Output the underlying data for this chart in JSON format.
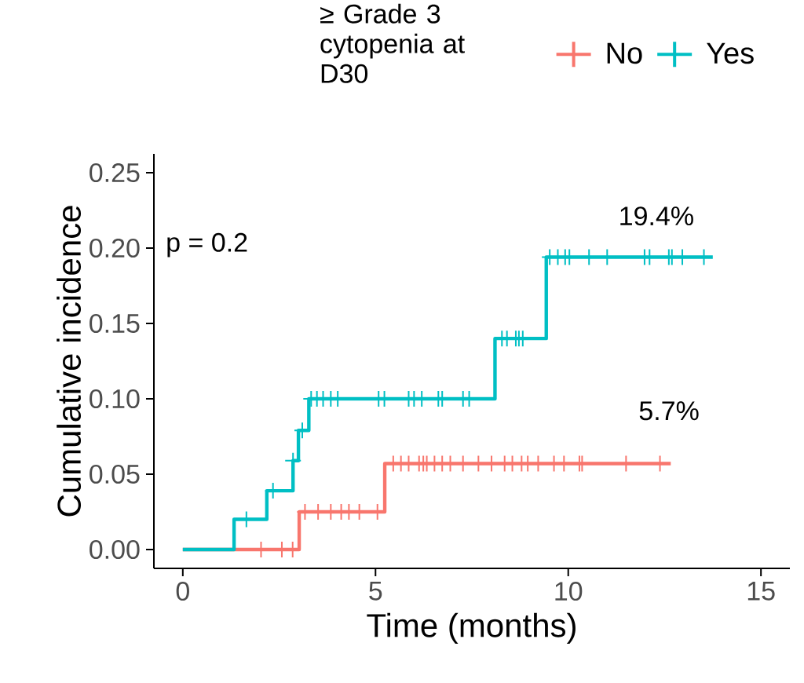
{
  "chart_data": {
    "type": "step",
    "xlabel": "Time (months)",
    "ylabel": "Cumulative incidence",
    "legend_title": "≥ Grade 3 cytopenia at D30",
    "legend": "top",
    "xlim": [
      -0.75,
      15.75
    ],
    "xticks": [
      0,
      5,
      10,
      15
    ],
    "ylim": [
      -0.0125,
      0.2625
    ],
    "yticks": [
      {
        "value": 0,
        "label": "0.00"
      },
      {
        "value": 0.05,
        "label": "0.05"
      },
      {
        "value": 0.1,
        "label": "0.10"
      },
      {
        "value": 0.15,
        "label": "0.15"
      },
      {
        "value": 0.2,
        "label": "0.20"
      },
      {
        "value": 0.25,
        "label": "0.25"
      }
    ],
    "grid": false,
    "annotations": [
      "p = 0.2",
      "19.4%",
      "5.7%"
    ],
    "series": [
      {
        "name": "No",
        "color": "#f8766d",
        "marker": "none",
        "x": [
          0,
          3.02,
          5.24,
          12.66
        ],
        "values": [
          0,
          0.025,
          0.057,
          0.057
        ]
      },
      {
        "name": "Yes",
        "color": "#00bfc4",
        "marker": "none",
        "x": [
          0,
          1.33,
          2.18,
          2.86,
          3.0,
          3.27,
          8.1,
          9.43,
          13.75
        ],
        "values": [
          0,
          0.02,
          0.039,
          0.059,
          0.079,
          0.1,
          0.14,
          0.194,
          0.194
        ]
      },
      {
        "type": "scatter",
        "color": "#f8766d",
        "marker": "cross",
        "x": [
          2.03,
          2.57,
          2.85,
          3.17,
          3.51,
          3.84,
          4.11,
          4.31,
          4.58,
          5.05,
          5.46,
          5.66,
          5.86,
          6.13,
          6.24,
          6.33,
          6.53,
          6.73,
          6.94,
          7.27,
          7.67,
          8.01,
          8.35,
          8.55,
          8.79,
          8.95,
          9.22,
          9.63,
          9.89,
          10.29,
          10.36,
          11.5,
          12.38
        ],
        "values": [
          0,
          0,
          0,
          0.025,
          0.025,
          0.025,
          0.025,
          0.025,
          0.025,
          0.025,
          0.057,
          0.057,
          0.057,
          0.057,
          0.057,
          0.057,
          0.057,
          0.057,
          0.057,
          0.057,
          0.057,
          0.057,
          0.057,
          0.057,
          0.057,
          0.057,
          0.057,
          0.057,
          0.057,
          0.057,
          0.057,
          0.057,
          0.057
        ]
      },
      {
        "type": "scatter",
        "color": "#00bfc4",
        "marker": "cross",
        "x": [
          1.65,
          2.34,
          2.86,
          3.1,
          3.33,
          3.48,
          3.64,
          3.84,
          4.02,
          5.08,
          5.23,
          5.86,
          6.0,
          6.2,
          6.63,
          6.73,
          7.27,
          7.43,
          8.28,
          8.41,
          8.64,
          8.72,
          8.82,
          9.52,
          9.73,
          9.92,
          10.03,
          10.54,
          11.01,
          11.98,
          12.11,
          12.61,
          12.69,
          12.96,
          13.52
        ],
        "values": [
          0.02,
          0.039,
          0.059,
          0.079,
          0.1,
          0.1,
          0.1,
          0.1,
          0.1,
          0.1,
          0.1,
          0.1,
          0.1,
          0.1,
          0.1,
          0.1,
          0.1,
          0.1,
          0.14,
          0.14,
          0.14,
          0.14,
          0.14,
          0.194,
          0.194,
          0.194,
          0.194,
          0.194,
          0.194,
          0.194,
          0.194,
          0.194,
          0.194,
          0.194,
          0.194
        ]
      }
    ]
  }
}
